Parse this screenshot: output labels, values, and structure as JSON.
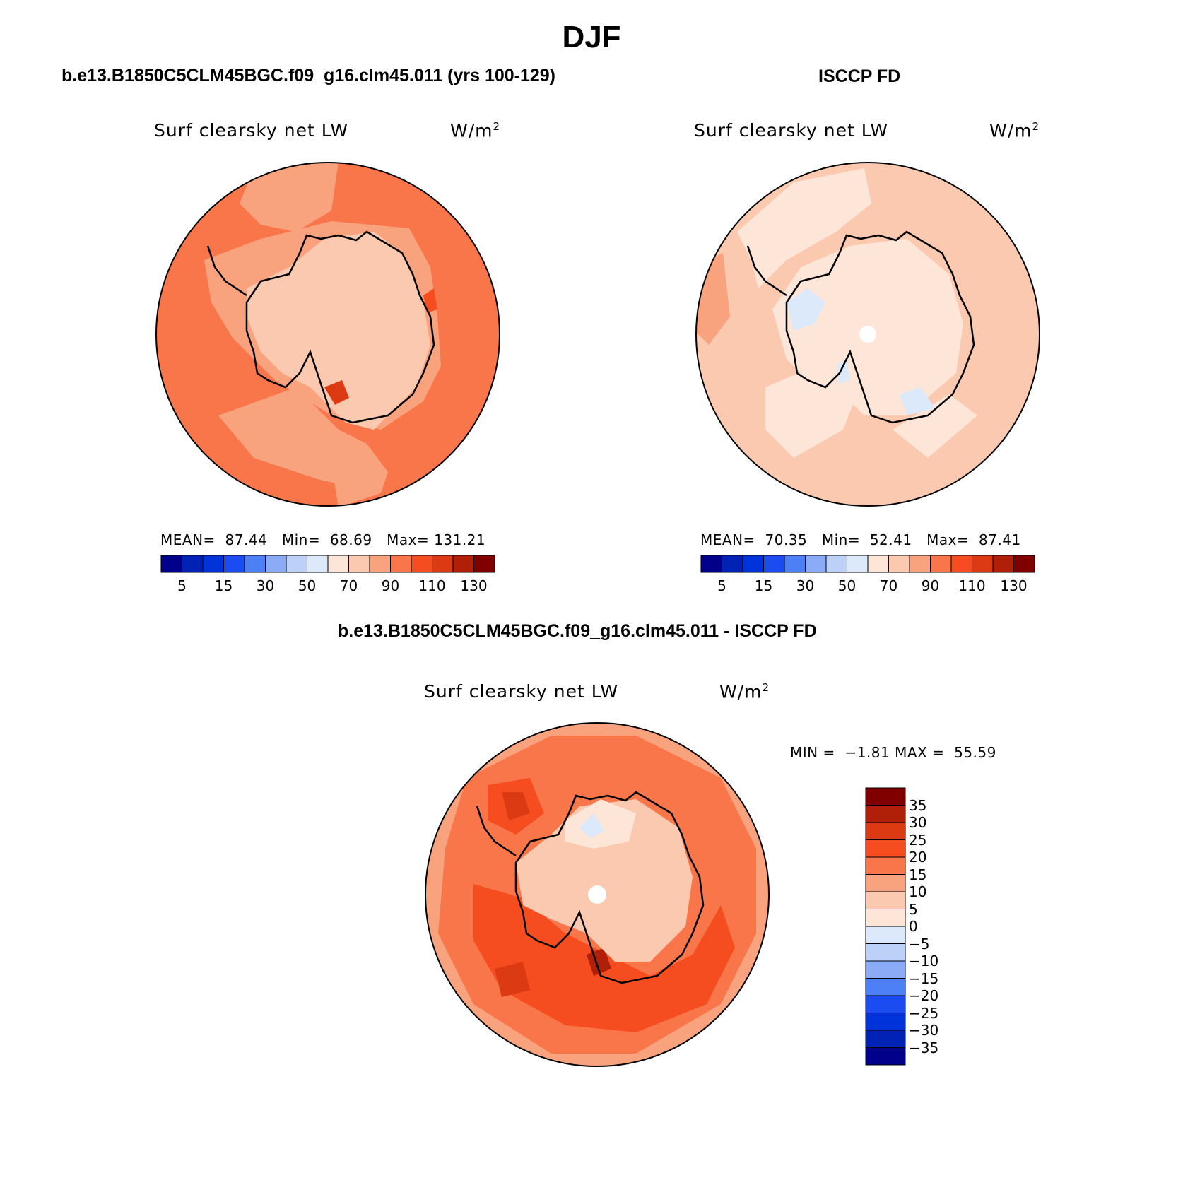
{
  "figure": {
    "season": "DJF",
    "left_title": "b.e13.B1850C5CLM45BGC.f09_g16.clm45.011 (yrs 100-129)",
    "right_title": "ISCCP FD",
    "diff_title": "b.e13.B1850C5CLM45BGC.f09_g16.clm45.011 - ISCCP FD"
  },
  "panels": {
    "model": {
      "variable": "Surf clearsky net LW",
      "units": "W/m",
      "units_exp": "2",
      "mean_label": "MEAN=",
      "mean": "87.44",
      "min_label": "Min=",
      "min": "68.69",
      "max_label": "Max=",
      "max": "131.21"
    },
    "obs": {
      "variable": "Surf clearsky net LW",
      "units": "W/m",
      "units_exp": "2",
      "mean_label": "MEAN=",
      "mean": "70.35",
      "min_label": "Min=",
      "min": "52.41",
      "max_label": "Max=",
      "max": "87.41"
    },
    "diff": {
      "variable": "Surf clearsky net LW",
      "units": "W/m",
      "units_exp": "2",
      "min_label": "MIN =",
      "min": "−1.81",
      "max_label": "MAX =",
      "max": "55.59"
    }
  },
  "colorbars": {
    "absolute": {
      "colors": [
        "#00008b",
        "#0022b5",
        "#0033d9",
        "#1a4cf2",
        "#4d7ff5",
        "#8cabf7",
        "#bdd0f8",
        "#dbe9fb",
        "#fde6d7",
        "#fbc9af",
        "#f9a27e",
        "#f8764a",
        "#f54d1f",
        "#dc3a12",
        "#b02008",
        "#800000"
      ],
      "tick_labels": [
        "5",
        "15",
        "30",
        "50",
        "70",
        "90",
        "110",
        "130"
      ]
    },
    "difference": {
      "colors": [
        "#00008b",
        "#0022b5",
        "#0033d9",
        "#1a4cf2",
        "#4d7ff5",
        "#8cabf7",
        "#bdd0f8",
        "#dbe9fb",
        "#fde6d7",
        "#fbc9af",
        "#f9a27e",
        "#f8764a",
        "#f54d1f",
        "#dc3a12",
        "#b02008",
        "#800000"
      ],
      "tick_labels": [
        "35",
        "30",
        "25",
        "20",
        "15",
        "10",
        "5",
        "0",
        "−5",
        "−10",
        "−15",
        "−20",
        "−25",
        "−30",
        "−35"
      ]
    }
  }
}
